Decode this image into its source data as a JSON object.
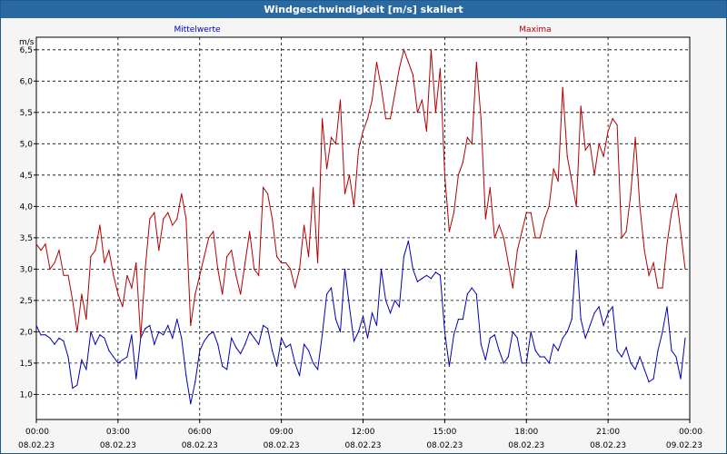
{
  "window": {
    "title": "Windgeschwindigkeit [m/s] skaliert"
  },
  "chart_data": {
    "type": "line",
    "title": "Windgeschwindigkeit [m/s] skaliert",
    "ylabel": "m/s",
    "ylim": [
      0.6,
      6.7
    ],
    "xlim": [
      "2023-02-08 00:00",
      "2023-02-09 00:00"
    ],
    "grid": true,
    "yticks": [
      {
        "value": 1.0,
        "label": "1,0"
      },
      {
        "value": 1.5,
        "label": "1,5"
      },
      {
        "value": 2.0,
        "label": "2,0"
      },
      {
        "value": 2.5,
        "label": "2,5"
      },
      {
        "value": 3.0,
        "label": "3,0"
      },
      {
        "value": 3.5,
        "label": "3,5"
      },
      {
        "value": 4.0,
        "label": "4,0"
      },
      {
        "value": 4.5,
        "label": "4,5"
      },
      {
        "value": 5.0,
        "label": "5,0"
      },
      {
        "value": 5.5,
        "label": "5,5"
      },
      {
        "value": 6.0,
        "label": "6,0"
      },
      {
        "value": 6.5,
        "label": "6,5"
      }
    ],
    "xticks": [
      {
        "time": "00:00",
        "date": "08.02.23"
      },
      {
        "time": "03:00",
        "date": "08.02.23"
      },
      {
        "time": "06:00",
        "date": "08.02.23"
      },
      {
        "time": "09:00",
        "date": "08.02.23"
      },
      {
        "time": "12:00",
        "date": "08.02.23"
      },
      {
        "time": "15:00",
        "date": "08.02.23"
      },
      {
        "time": "18:00",
        "date": "08.02.23"
      },
      {
        "time": "21:00",
        "date": "08.02.23"
      },
      {
        "time": "00:00",
        "date": "09.02.23"
      }
    ],
    "series": [
      {
        "name": "Mittelwerte",
        "color": "#0000b4",
        "legend_position": "top-left",
        "points": [
          [
            "00:00",
            2.1
          ],
          [
            "00:10",
            1.95
          ],
          [
            "00:20",
            1.95
          ],
          [
            "00:30",
            1.9
          ],
          [
            "00:40",
            1.8
          ],
          [
            "00:50",
            1.9
          ],
          [
            "01:00",
            1.85
          ],
          [
            "01:10",
            1.6
          ],
          [
            "01:20",
            1.1
          ],
          [
            "01:30",
            1.15
          ],
          [
            "01:40",
            1.55
          ],
          [
            "01:50",
            1.4
          ],
          [
            "02:00",
            2.0
          ],
          [
            "02:10",
            1.8
          ],
          [
            "02:20",
            1.95
          ],
          [
            "02:30",
            1.9
          ],
          [
            "02:40",
            1.7
          ],
          [
            "02:50",
            1.6
          ],
          [
            "03:00",
            1.5
          ],
          [
            "03:10",
            1.55
          ],
          [
            "03:20",
            1.6
          ],
          [
            "03:30",
            1.95
          ],
          [
            "03:40",
            1.25
          ],
          [
            "03:50",
            1.9
          ],
          [
            "04:00",
            2.05
          ],
          [
            "04:10",
            2.1
          ],
          [
            "04:20",
            1.8
          ],
          [
            "04:30",
            2.0
          ],
          [
            "04:40",
            1.95
          ],
          [
            "04:50",
            2.1
          ],
          [
            "05:00",
            1.9
          ],
          [
            "05:10",
            2.2
          ],
          [
            "05:20",
            1.9
          ],
          [
            "05:30",
            1.3
          ],
          [
            "05:40",
            0.85
          ],
          [
            "05:50",
            1.2
          ],
          [
            "06:00",
            1.7
          ],
          [
            "06:10",
            1.85
          ],
          [
            "06:20",
            1.95
          ],
          [
            "06:30",
            2.0
          ],
          [
            "06:40",
            1.8
          ],
          [
            "06:50",
            1.45
          ],
          [
            "07:00",
            1.4
          ],
          [
            "07:10",
            1.9
          ],
          [
            "07:20",
            1.75
          ],
          [
            "07:30",
            1.65
          ],
          [
            "07:40",
            1.8
          ],
          [
            "07:50",
            2.0
          ],
          [
            "08:00",
            1.9
          ],
          [
            "08:10",
            1.8
          ],
          [
            "08:20",
            2.1
          ],
          [
            "08:30",
            2.05
          ],
          [
            "08:40",
            1.7
          ],
          [
            "08:50",
            1.45
          ],
          [
            "09:00",
            1.9
          ],
          [
            "09:10",
            1.75
          ],
          [
            "09:20",
            1.8
          ],
          [
            "09:30",
            1.5
          ],
          [
            "09:40",
            1.3
          ],
          [
            "09:50",
            1.8
          ],
          [
            "10:00",
            1.7
          ],
          [
            "10:10",
            1.5
          ],
          [
            "10:20",
            1.4
          ],
          [
            "10:30",
            1.95
          ],
          [
            "10:40",
            2.6
          ],
          [
            "10:50",
            2.7
          ],
          [
            "11:00",
            2.2
          ],
          [
            "11:10",
            2.0
          ],
          [
            "11:20",
            3.0
          ],
          [
            "11:30",
            2.4
          ],
          [
            "11:40",
            1.85
          ],
          [
            "11:50",
            2.0
          ],
          [
            "12:00",
            2.25
          ],
          [
            "12:10",
            1.9
          ],
          [
            "12:20",
            2.3
          ],
          [
            "12:30",
            2.1
          ],
          [
            "12:40",
            3.0
          ],
          [
            "12:50",
            2.5
          ],
          [
            "13:00",
            2.3
          ],
          [
            "13:10",
            2.5
          ],
          [
            "13:20",
            2.4
          ],
          [
            "13:30",
            3.2
          ],
          [
            "13:40",
            3.45
          ],
          [
            "13:50",
            3.0
          ],
          [
            "14:00",
            2.8
          ],
          [
            "14:10",
            2.85
          ],
          [
            "14:20",
            2.9
          ],
          [
            "14:30",
            2.85
          ],
          [
            "14:40",
            2.95
          ],
          [
            "14:50",
            2.9
          ],
          [
            "15:00",
            2.0
          ],
          [
            "15:10",
            1.45
          ],
          [
            "15:20",
            1.95
          ],
          [
            "15:30",
            2.2
          ],
          [
            "15:40",
            2.2
          ],
          [
            "15:50",
            2.6
          ],
          [
            "16:00",
            2.7
          ],
          [
            "16:10",
            2.6
          ],
          [
            "16:20",
            1.8
          ],
          [
            "16:30",
            1.55
          ],
          [
            "16:40",
            1.9
          ],
          [
            "16:50",
            1.95
          ],
          [
            "17:00",
            1.7
          ],
          [
            "17:10",
            1.5
          ],
          [
            "17:20",
            1.6
          ],
          [
            "17:30",
            2.0
          ],
          [
            "17:40",
            1.9
          ],
          [
            "17:50",
            1.5
          ],
          [
            "18:00",
            1.5
          ],
          [
            "18:10",
            2.0
          ],
          [
            "18:20",
            1.7
          ],
          [
            "18:30",
            1.6
          ],
          [
            "18:40",
            1.6
          ],
          [
            "18:50",
            1.5
          ],
          [
            "19:00",
            1.8
          ],
          [
            "19:10",
            1.7
          ],
          [
            "19:20",
            1.9
          ],
          [
            "19:30",
            2.0
          ],
          [
            "19:40",
            2.2
          ],
          [
            "19:50",
            3.3
          ],
          [
            "20:00",
            2.2
          ],
          [
            "20:10",
            1.9
          ],
          [
            "20:20",
            2.1
          ],
          [
            "20:30",
            2.3
          ],
          [
            "20:40",
            2.4
          ],
          [
            "20:50",
            2.1
          ],
          [
            "21:00",
            2.3
          ],
          [
            "21:10",
            2.4
          ],
          [
            "21:20",
            1.7
          ],
          [
            "21:30",
            1.6
          ],
          [
            "21:40",
            1.75
          ],
          [
            "21:50",
            1.5
          ],
          [
            "22:00",
            1.4
          ],
          [
            "22:10",
            1.6
          ],
          [
            "22:20",
            1.4
          ],
          [
            "22:30",
            1.2
          ],
          [
            "22:40",
            1.25
          ],
          [
            "22:50",
            1.7
          ],
          [
            "23:00",
            2.0
          ],
          [
            "23:10",
            2.4
          ],
          [
            "23:20",
            1.7
          ],
          [
            "23:30",
            1.6
          ],
          [
            "23:40",
            1.25
          ],
          [
            "23:50",
            1.9
          ]
        ]
      },
      {
        "name": "Maxima",
        "color": "#b40000",
        "legend_position": "top-right",
        "points": [
          [
            "00:00",
            3.4
          ],
          [
            "00:10",
            3.3
          ],
          [
            "00:20",
            3.4
          ],
          [
            "00:30",
            3.0
          ],
          [
            "00:40",
            3.1
          ],
          [
            "00:50",
            3.3
          ],
          [
            "01:00",
            2.9
          ],
          [
            "01:10",
            2.9
          ],
          [
            "01:20",
            2.5
          ],
          [
            "01:30",
            2.0
          ],
          [
            "01:40",
            2.6
          ],
          [
            "01:50",
            2.2
          ],
          [
            "02:00",
            3.2
          ],
          [
            "02:10",
            3.3
          ],
          [
            "02:20",
            3.7
          ],
          [
            "02:30",
            3.1
          ],
          [
            "02:40",
            3.3
          ],
          [
            "02:50",
            2.9
          ],
          [
            "03:00",
            2.6
          ],
          [
            "03:10",
            2.4
          ],
          [
            "03:20",
            2.9
          ],
          [
            "03:30",
            2.7
          ],
          [
            "03:40",
            3.1
          ],
          [
            "03:50",
            1.9
          ],
          [
            "04:00",
            3.0
          ],
          [
            "04:10",
            3.8
          ],
          [
            "04:20",
            3.9
          ],
          [
            "04:30",
            3.3
          ],
          [
            "04:40",
            3.8
          ],
          [
            "04:50",
            3.9
          ],
          [
            "05:00",
            3.7
          ],
          [
            "05:10",
            3.8
          ],
          [
            "05:20",
            4.2
          ],
          [
            "05:30",
            3.8
          ],
          [
            "05:40",
            2.1
          ],
          [
            "05:50",
            2.6
          ],
          [
            "06:00",
            2.9
          ],
          [
            "06:10",
            3.2
          ],
          [
            "06:20",
            3.5
          ],
          [
            "06:30",
            3.6
          ],
          [
            "06:40",
            3.0
          ],
          [
            "06:50",
            2.6
          ],
          [
            "07:00",
            3.2
          ],
          [
            "07:10",
            3.3
          ],
          [
            "07:20",
            2.9
          ],
          [
            "07:30",
            2.6
          ],
          [
            "07:40",
            3.1
          ],
          [
            "07:50",
            3.6
          ],
          [
            "08:00",
            3.0
          ],
          [
            "08:10",
            2.9
          ],
          [
            "08:20",
            4.3
          ],
          [
            "08:30",
            4.2
          ],
          [
            "08:40",
            3.8
          ],
          [
            "08:50",
            3.2
          ],
          [
            "09:00",
            3.1
          ],
          [
            "09:10",
            3.1
          ],
          [
            "09:20",
            3.0
          ],
          [
            "09:30",
            2.7
          ],
          [
            "09:40",
            3.0
          ],
          [
            "09:50",
            3.7
          ],
          [
            "10:00",
            3.2
          ],
          [
            "10:10",
            4.3
          ],
          [
            "10:20",
            3.1
          ],
          [
            "10:30",
            5.4
          ],
          [
            "10:40",
            4.6
          ],
          [
            "10:50",
            5.1
          ],
          [
            "11:00",
            5.0
          ],
          [
            "11:10",
            5.7
          ],
          [
            "11:20",
            4.2
          ],
          [
            "11:30",
            4.5
          ],
          [
            "11:40",
            4.0
          ],
          [
            "11:50",
            4.9
          ],
          [
            "12:00",
            5.2
          ],
          [
            "12:10",
            5.4
          ],
          [
            "12:20",
            5.7
          ],
          [
            "12:30",
            6.3
          ],
          [
            "12:40",
            5.9
          ],
          [
            "12:50",
            5.4
          ],
          [
            "13:00",
            5.4
          ],
          [
            "13:10",
            5.8
          ],
          [
            "13:20",
            6.2
          ],
          [
            "13:30",
            6.5
          ],
          [
            "13:40",
            6.3
          ],
          [
            "13:50",
            6.1
          ],
          [
            "14:00",
            5.5
          ],
          [
            "14:10",
            5.7
          ],
          [
            "14:20",
            5.2
          ],
          [
            "14:30",
            6.5
          ],
          [
            "14:40",
            5.5
          ],
          [
            "14:50",
            6.2
          ],
          [
            "15:00",
            4.5
          ],
          [
            "15:10",
            3.6
          ],
          [
            "15:20",
            3.9
          ],
          [
            "15:30",
            4.5
          ],
          [
            "15:40",
            4.7
          ],
          [
            "15:50",
            5.1
          ],
          [
            "16:00",
            5.0
          ],
          [
            "16:10",
            6.3
          ],
          [
            "16:20",
            5.4
          ],
          [
            "16:30",
            3.8
          ],
          [
            "16:40",
            4.3
          ],
          [
            "16:50",
            3.5
          ],
          [
            "17:00",
            3.7
          ],
          [
            "17:10",
            3.5
          ],
          [
            "17:20",
            3.1
          ],
          [
            "17:30",
            2.7
          ],
          [
            "17:40",
            3.3
          ],
          [
            "17:50",
            3.6
          ],
          [
            "18:00",
            3.9
          ],
          [
            "18:10",
            3.9
          ],
          [
            "18:20",
            3.5
          ],
          [
            "18:30",
            3.5
          ],
          [
            "18:40",
            3.8
          ],
          [
            "18:50",
            4.0
          ],
          [
            "19:00",
            4.6
          ],
          [
            "19:10",
            4.4
          ],
          [
            "19:20",
            5.9
          ],
          [
            "19:30",
            4.8
          ],
          [
            "19:40",
            4.4
          ],
          [
            "19:50",
            4.0
          ],
          [
            "20:00",
            5.6
          ],
          [
            "20:10",
            4.9
          ],
          [
            "20:20",
            5.0
          ],
          [
            "20:30",
            4.5
          ],
          [
            "20:40",
            5.0
          ],
          [
            "20:50",
            4.8
          ],
          [
            "21:00",
            5.2
          ],
          [
            "21:10",
            5.4
          ],
          [
            "21:20",
            5.3
          ],
          [
            "21:30",
            3.5
          ],
          [
            "21:40",
            3.6
          ],
          [
            "21:50",
            4.2
          ],
          [
            "22:00",
            5.1
          ],
          [
            "22:10",
            4.0
          ],
          [
            "22:20",
            3.3
          ],
          [
            "22:30",
            2.9
          ],
          [
            "22:40",
            3.1
          ],
          [
            "22:50",
            2.7
          ],
          [
            "23:00",
            2.7
          ],
          [
            "23:10",
            3.4
          ],
          [
            "23:20",
            3.9
          ],
          [
            "23:30",
            4.2
          ],
          [
            "23:40",
            3.6
          ],
          [
            "23:50",
            3.0
          ]
        ]
      }
    ]
  }
}
